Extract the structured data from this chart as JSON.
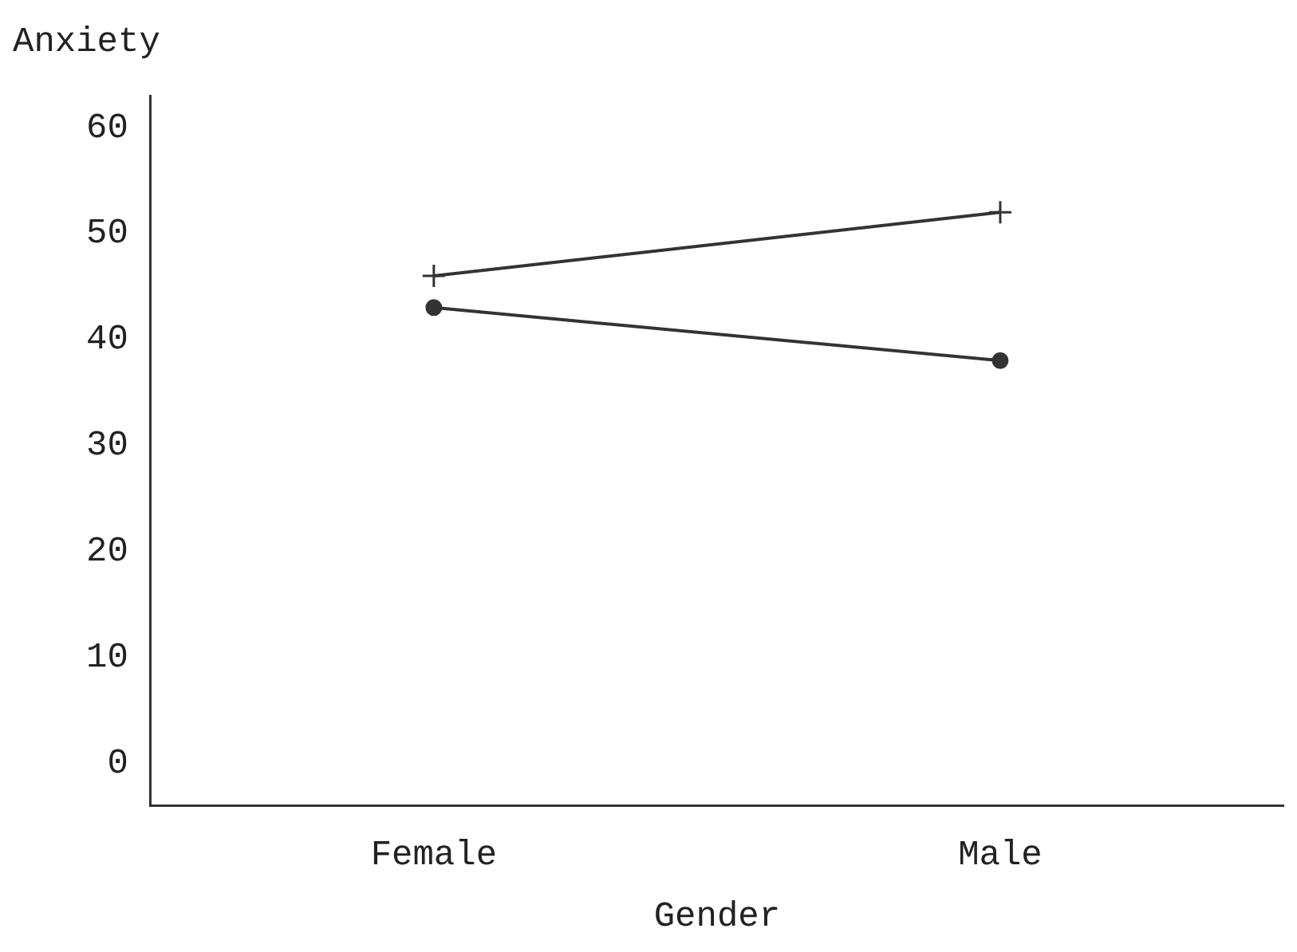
{
  "chart_data": {
    "type": "line",
    "ylabel": "Anxiety",
    "xlabel": "Gender",
    "categories": [
      "Female",
      "Male"
    ],
    "series": [
      {
        "color": "#333333",
        "values": [
          46,
          52
        ],
        "marker": "cross"
      },
      {
        "color": "#333333",
        "values": [
          43,
          38
        ],
        "marker": "circle"
      }
    ],
    "ylim": [
      -4,
      63
    ],
    "yticks": [
      0,
      10,
      20,
      30,
      40,
      50,
      60
    ],
    "grid": false,
    "legend": false
  }
}
